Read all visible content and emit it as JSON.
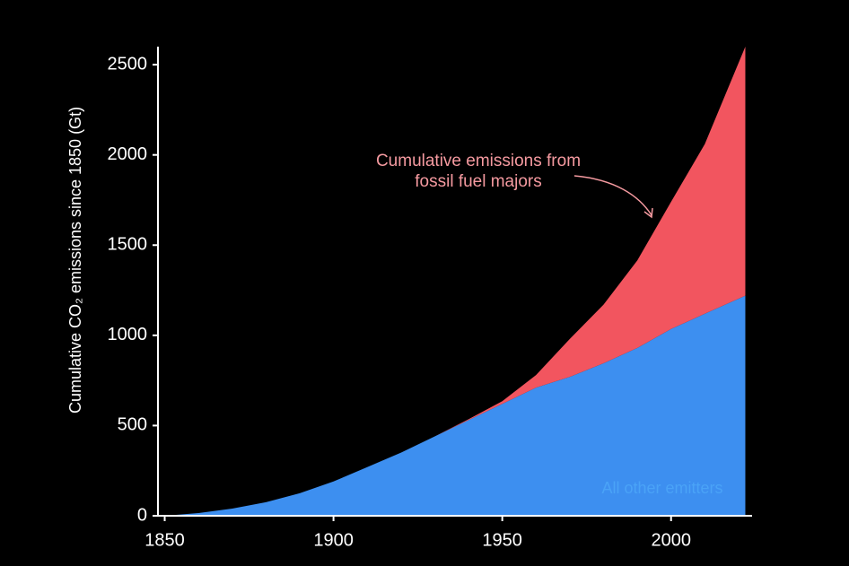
{
  "chart_data": {
    "type": "stacked-area",
    "y_label": "Cumulative CO₂ emissions since 1850 (Gt)",
    "x": [
      1850,
      1860,
      1870,
      1880,
      1890,
      1900,
      1910,
      1920,
      1930,
      1940,
      1950,
      1960,
      1970,
      1980,
      1990,
      2000,
      2010,
      2022
    ],
    "series": [
      {
        "name": "All other emitters",
        "color": "#3d8ff0",
        "label_color": "#4aa3f7",
        "values": [
          0,
          15,
          40,
          75,
          125,
          190,
          270,
          350,
          440,
          530,
          620,
          710,
          770,
          845,
          930,
          1035,
          1120,
          1220
        ]
      },
      {
        "name": "Cumulative emissions from fossil fuel majors",
        "color": "#f2555f",
        "label_color": "#f59aa0",
        "values": [
          0,
          0,
          0,
          0,
          0,
          0,
          0,
          0,
          0,
          5,
          15,
          70,
          210,
          325,
          485,
          705,
          940,
          1380
        ]
      }
    ],
    "xlim": [
      1848,
      2024
    ],
    "xticks": [
      1850,
      1900,
      1950,
      2000
    ],
    "ylim": [
      0,
      2600
    ],
    "yticks": [
      0,
      500,
      1000,
      1500,
      2000,
      2500
    ]
  }
}
